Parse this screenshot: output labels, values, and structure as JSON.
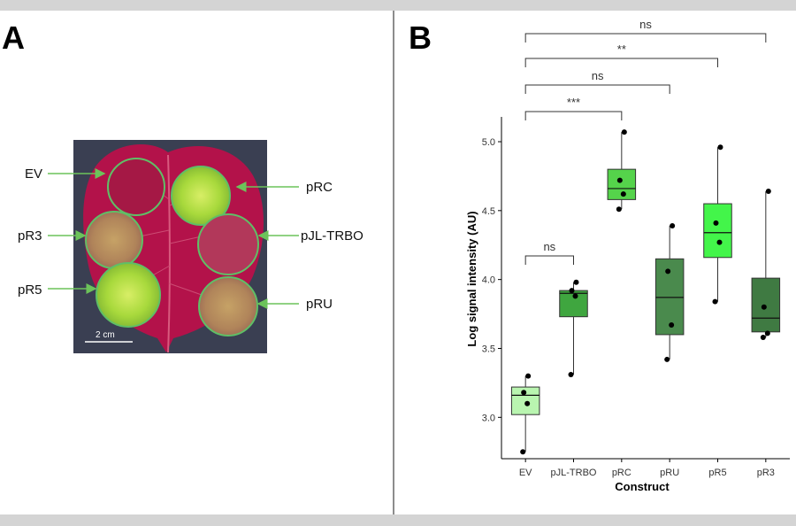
{
  "figure": {
    "panel_a": {
      "label": "A",
      "scale_bar": "2 cm",
      "spot_labels": [
        "EV",
        "pR3",
        "pR5",
        "pRC",
        "pJL-TRBO",
        "pRU"
      ],
      "colors": {
        "leaf": "#b3124a",
        "background": "#3a3f52",
        "gfp": "#a8d93c",
        "arrow": "#6cc35a"
      }
    },
    "panel_b": {
      "label": "B"
    }
  },
  "chart_data": {
    "type": "boxplot",
    "xlabel": "Construct",
    "ylabel": "Log signal intensity (AU)",
    "ylim": [
      2.7,
      5.18
    ],
    "yticks": [
      3.0,
      3.5,
      4.0,
      4.5,
      5.0
    ],
    "ytick_labels": [
      "3.0",
      "3.5",
      "4.0",
      "4.5",
      "5.0"
    ],
    "categories": [
      "EV",
      "pJL-TRBO",
      "pRC",
      "pRU",
      "pR5",
      "pR3"
    ],
    "boxes": [
      {
        "name": "EV",
        "color": "#b9f5b0",
        "whisker_low": 2.75,
        "q1": 3.02,
        "median": 3.16,
        "q3": 3.22,
        "whisker_high": 3.3,
        "points": [
          2.75,
          3.1,
          3.18,
          3.3
        ]
      },
      {
        "name": "pJL-TRBO",
        "color": "#3fa63f",
        "whisker_low": 3.31,
        "q1": 3.73,
        "median": 3.9,
        "q3": 3.92,
        "whisker_high": 3.98,
        "points": [
          3.31,
          3.88,
          3.92,
          3.98
        ]
      },
      {
        "name": "pRC",
        "color": "#55d34b",
        "whisker_low": 4.51,
        "q1": 4.58,
        "median": 4.66,
        "q3": 4.8,
        "whisker_high": 5.07,
        "points": [
          4.51,
          4.62,
          4.72,
          5.07
        ]
      },
      {
        "name": "pRU",
        "color": "#4a8a4d",
        "whisker_low": 3.42,
        "q1": 3.6,
        "median": 3.87,
        "q3": 4.15,
        "whisker_high": 4.39,
        "points": [
          3.42,
          3.67,
          4.06,
          4.39
        ]
      },
      {
        "name": "pR5",
        "color": "#43f54a",
        "whisker_low": 3.84,
        "q1": 4.16,
        "median": 4.34,
        "q3": 4.55,
        "whisker_high": 4.96,
        "points": [
          3.84,
          4.27,
          4.41,
          4.96
        ]
      },
      {
        "name": "pR3",
        "color": "#3f7a42",
        "whisker_low": 3.58,
        "q1": 3.62,
        "median": 3.72,
        "q3": 4.01,
        "whisker_high": 4.64,
        "points": [
          3.58,
          3.61,
          3.8,
          4.64
        ]
      }
    ],
    "significance": [
      {
        "from": "EV",
        "to": "pR3",
        "label": "ns"
      },
      {
        "from": "EV",
        "to": "pR5",
        "label": "**"
      },
      {
        "from": "EV",
        "to": "pRU",
        "label": "ns"
      },
      {
        "from": "EV",
        "to": "pRC",
        "label": "***"
      },
      {
        "from": "EV",
        "to": "pJL-TRBO",
        "label": "ns"
      }
    ]
  }
}
